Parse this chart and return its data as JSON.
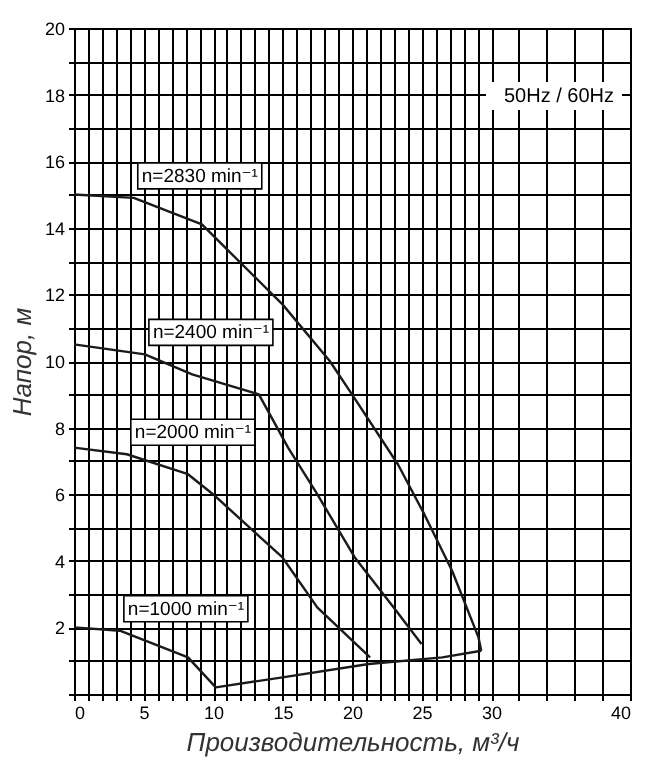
{
  "chart_data": {
    "type": "line",
    "xlabel": "Производительность, м³/ч",
    "ylabel": "Напор, м",
    "annotations": [
      "50Hz / 60Hz"
    ],
    "xlim": [
      0,
      40
    ],
    "ylim": [
      0,
      20
    ],
    "xticks": [
      0,
      {
        "value": 1,
        "label": null
      },
      {
        "value": 2,
        "label": null
      },
      {
        "value": 3,
        "label": null
      },
      {
        "value": 4,
        "label": null
      },
      5,
      {
        "value": 6,
        "label": null
      },
      {
        "value": 7,
        "label": null
      },
      {
        "value": 8,
        "label": null
      },
      {
        "value": 9,
        "label": null
      },
      10,
      {
        "value": 11,
        "label": null
      },
      {
        "value": 12,
        "label": null
      },
      {
        "value": 13,
        "label": null
      },
      {
        "value": 14,
        "label": null
      },
      15,
      {
        "value": 16,
        "label": null
      },
      {
        "value": 17,
        "label": null
      },
      {
        "value": 18,
        "label": null
      },
      {
        "value": 19,
        "label": null
      },
      20,
      {
        "value": 21,
        "label": null
      },
      {
        "value": 22,
        "label": null
      },
      {
        "value": 23,
        "label": null
      },
      {
        "value": 24,
        "label": null
      },
      25,
      {
        "value": 26,
        "label": null
      },
      {
        "value": 27,
        "label": null
      },
      {
        "value": 28,
        "label": null
      },
      {
        "value": 29,
        "label": null
      },
      30,
      {
        "value": 32,
        "label": null
      },
      {
        "value": 34,
        "label": null
      },
      {
        "value": 36,
        "label": null
      },
      {
        "value": 38,
        "label": null
      },
      40
    ],
    "yticks": [
      {
        "value": 0,
        "label": null
      },
      {
        "value": 1,
        "label": null
      },
      2,
      {
        "value": 3,
        "label": null
      },
      4,
      {
        "value": 5,
        "label": null
      },
      6,
      {
        "value": 7,
        "label": null
      },
      8,
      {
        "value": 9,
        "label": null
      },
      10,
      {
        "value": 11,
        "label": null
      },
      12,
      {
        "value": 13,
        "label": null
      },
      14,
      {
        "value": 15,
        "label": null
      },
      16,
      {
        "value": 17,
        "label": null
      },
      18,
      {
        "value": 19,
        "label": null
      },
      20
    ],
    "grid": true,
    "marker": "none",
    "line_style": "solid",
    "series": [
      {
        "name": "n=2830 min⁻¹",
        "color": "#1a1a1a",
        "x": [
          0,
          4.3,
          9.2,
          15,
          18.4,
          20,
          23.3,
          25.2,
          27.2,
          29.1,
          29.3
        ],
        "values": [
          15.0,
          14.9,
          14.1,
          11.7,
          10,
          9,
          6.9,
          5.4,
          3.7,
          1.7,
          1.3
        ]
      },
      {
        "name": "n=2400 min⁻¹",
        "color": "#1a1a1a",
        "x": [
          0,
          5.1,
          8.5,
          13.3,
          15.4,
          17.5,
          20.2,
          23.0,
          25
        ],
        "values": [
          10.5,
          10.2,
          9.6,
          9.0,
          7.4,
          6.0,
          4.1,
          2.6,
          1.5
        ]
      },
      {
        "name": "n=2000 min⁻¹",
        "color": "#1a1a1a",
        "x": [
          0,
          3.8,
          8.2,
          10,
          15,
          17.5,
          21.3
        ],
        "values": [
          7.4,
          7.2,
          6.6,
          6.0,
          4.1,
          2.6,
          1.1
        ]
      },
      {
        "name": "n=1000 min⁻¹",
        "color": "#1a1a1a",
        "x": [
          0,
          3.3,
          8.2,
          10.2
        ],
        "values": [
          2.0,
          1.9,
          1.1,
          0.2
        ]
      },
      {
        "color": "#1a1a1a",
        "x": [
          10.2,
          15,
          21.2,
          26.5,
          29.3
        ],
        "values": [
          0.2,
          0.5,
          0.9,
          1.1,
          1.3
        ]
      }
    ]
  }
}
